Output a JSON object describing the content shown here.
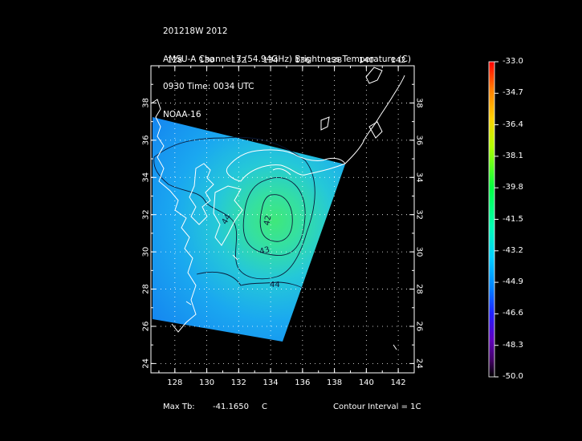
{
  "header": {
    "line1": "201218W 2012",
    "line2": "AMSU-A Channel 7 (54.94GHz) Brightness Temperature (C)",
    "line3": "0930 Time: 0034 UTC",
    "line4": "NOAA-16"
  },
  "axes": {
    "lon_ticks": [
      "128",
      "130",
      "132",
      "134",
      "136",
      "138",
      "140",
      "142"
    ],
    "lat_ticks": [
      "24",
      "26",
      "28",
      "30",
      "32",
      "34",
      "36",
      "38"
    ],
    "lon_range": [
      126.5,
      143
    ],
    "lat_range": [
      23.5,
      40
    ]
  },
  "contours": {
    "labels": [
      "42",
      "43",
      "44",
      "44"
    ]
  },
  "colorbar": {
    "labels": [
      "-33.0",
      "-34.7",
      "-36.4",
      "-38.1",
      "-39.8",
      "-41.5",
      "-43.2",
      "-44.9",
      "-46.6",
      "-48.3",
      "-50.0"
    ],
    "colors": [
      "#ff0000",
      "#ff8000",
      "#ffd000",
      "#b0ff00",
      "#00ff40",
      "#00ffb0",
      "#00d0ff",
      "#0080ff",
      "#2020ff",
      "#6000c0",
      "#400060",
      "#000000"
    ]
  },
  "footer": {
    "max_label": "Max Tb:",
    "max_value": "-41.1650",
    "unit": "C",
    "contour_interval": "Contour Interval = 1C"
  }
}
